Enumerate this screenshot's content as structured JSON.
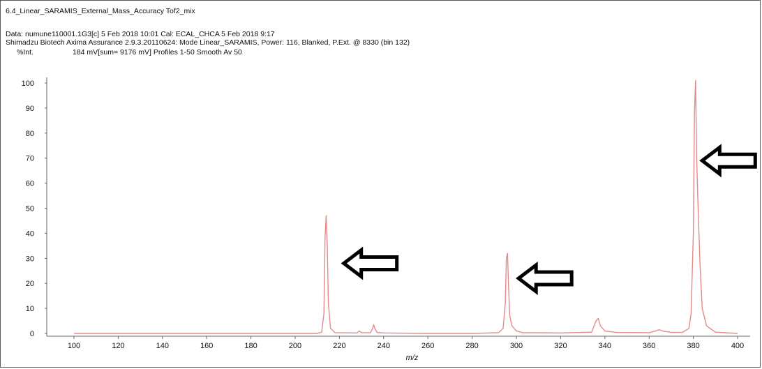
{
  "window": {
    "title": "6.4_Linear_SARAMIS_External_Mass_Accuracy Tof2_mix"
  },
  "info": {
    "line1": "Data: numune110001.1G3[c] 5 Feb 2018 10:01 Cal: ECAL_CHCA 5 Feb 2018 9:17",
    "line2": "Shimadzu Biotech Axima Assurance 2.9.3.20110624: Mode Linear_SARAMIS, Power: 116, Blanked, P.Ext. @ 8330 (bin 132)",
    "ylabel": "%Int.",
    "line3": "184 mV[sum= 9176 mV]  Profiles 1-50 Smooth Av 50"
  },
  "chart_data": {
    "type": "line",
    "xlabel": "m/z",
    "ylabel": "%Int.",
    "xlim": [
      100,
      400
    ],
    "ylim": [
      0,
      100
    ],
    "x_ticks": [
      100,
      120,
      140,
      160,
      180,
      200,
      220,
      240,
      260,
      280,
      300,
      320,
      340,
      360,
      380,
      400
    ],
    "y_ticks": [
      0,
      10,
      20,
      30,
      40,
      50,
      60,
      70,
      80,
      90,
      100
    ],
    "grid": false,
    "line_color": "#e58a8a",
    "series": [
      {
        "x": [
          100,
          200,
          210,
          212,
          213,
          213.5,
          214,
          214.5,
          215,
          216,
          218,
          228,
          229,
          230,
          234,
          235,
          235.5,
          236,
          237,
          240,
          260,
          280,
          292,
          294,
          295,
          295.5,
          296,
          296.5,
          297,
          298,
          300,
          303,
          320,
          334,
          336,
          337,
          338,
          340,
          345,
          360,
          363,
          364.5,
          366,
          370,
          375,
          378,
          379,
          380,
          380.5,
          381,
          381.5,
          382,
          383,
          384,
          386,
          390,
          400
        ],
        "y": [
          0,
          0,
          0,
          0.5,
          8,
          38,
          47,
          35,
          12,
          2,
          0.3,
          0.2,
          1,
          0.3,
          0.3,
          2,
          3.5,
          2,
          0.4,
          0.2,
          0,
          0,
          0.3,
          2,
          12,
          30,
          32,
          18,
          7,
          3,
          1,
          0.3,
          0.2,
          0.5,
          5,
          6,
          3,
          1,
          0.4,
          0.3,
          1,
          1.5,
          1,
          0.4,
          0.4,
          2,
          8,
          40,
          88,
          101,
          70,
          55,
          28,
          10,
          3,
          0.5,
          0
        ]
      }
    ],
    "annotations": [
      {
        "type": "arrow",
        "direction": "left",
        "x": 222,
        "y": 28
      },
      {
        "type": "arrow",
        "direction": "left",
        "x": 301,
        "y": 22
      },
      {
        "type": "arrow",
        "direction": "left",
        "x": 384,
        "y": 69
      }
    ]
  }
}
